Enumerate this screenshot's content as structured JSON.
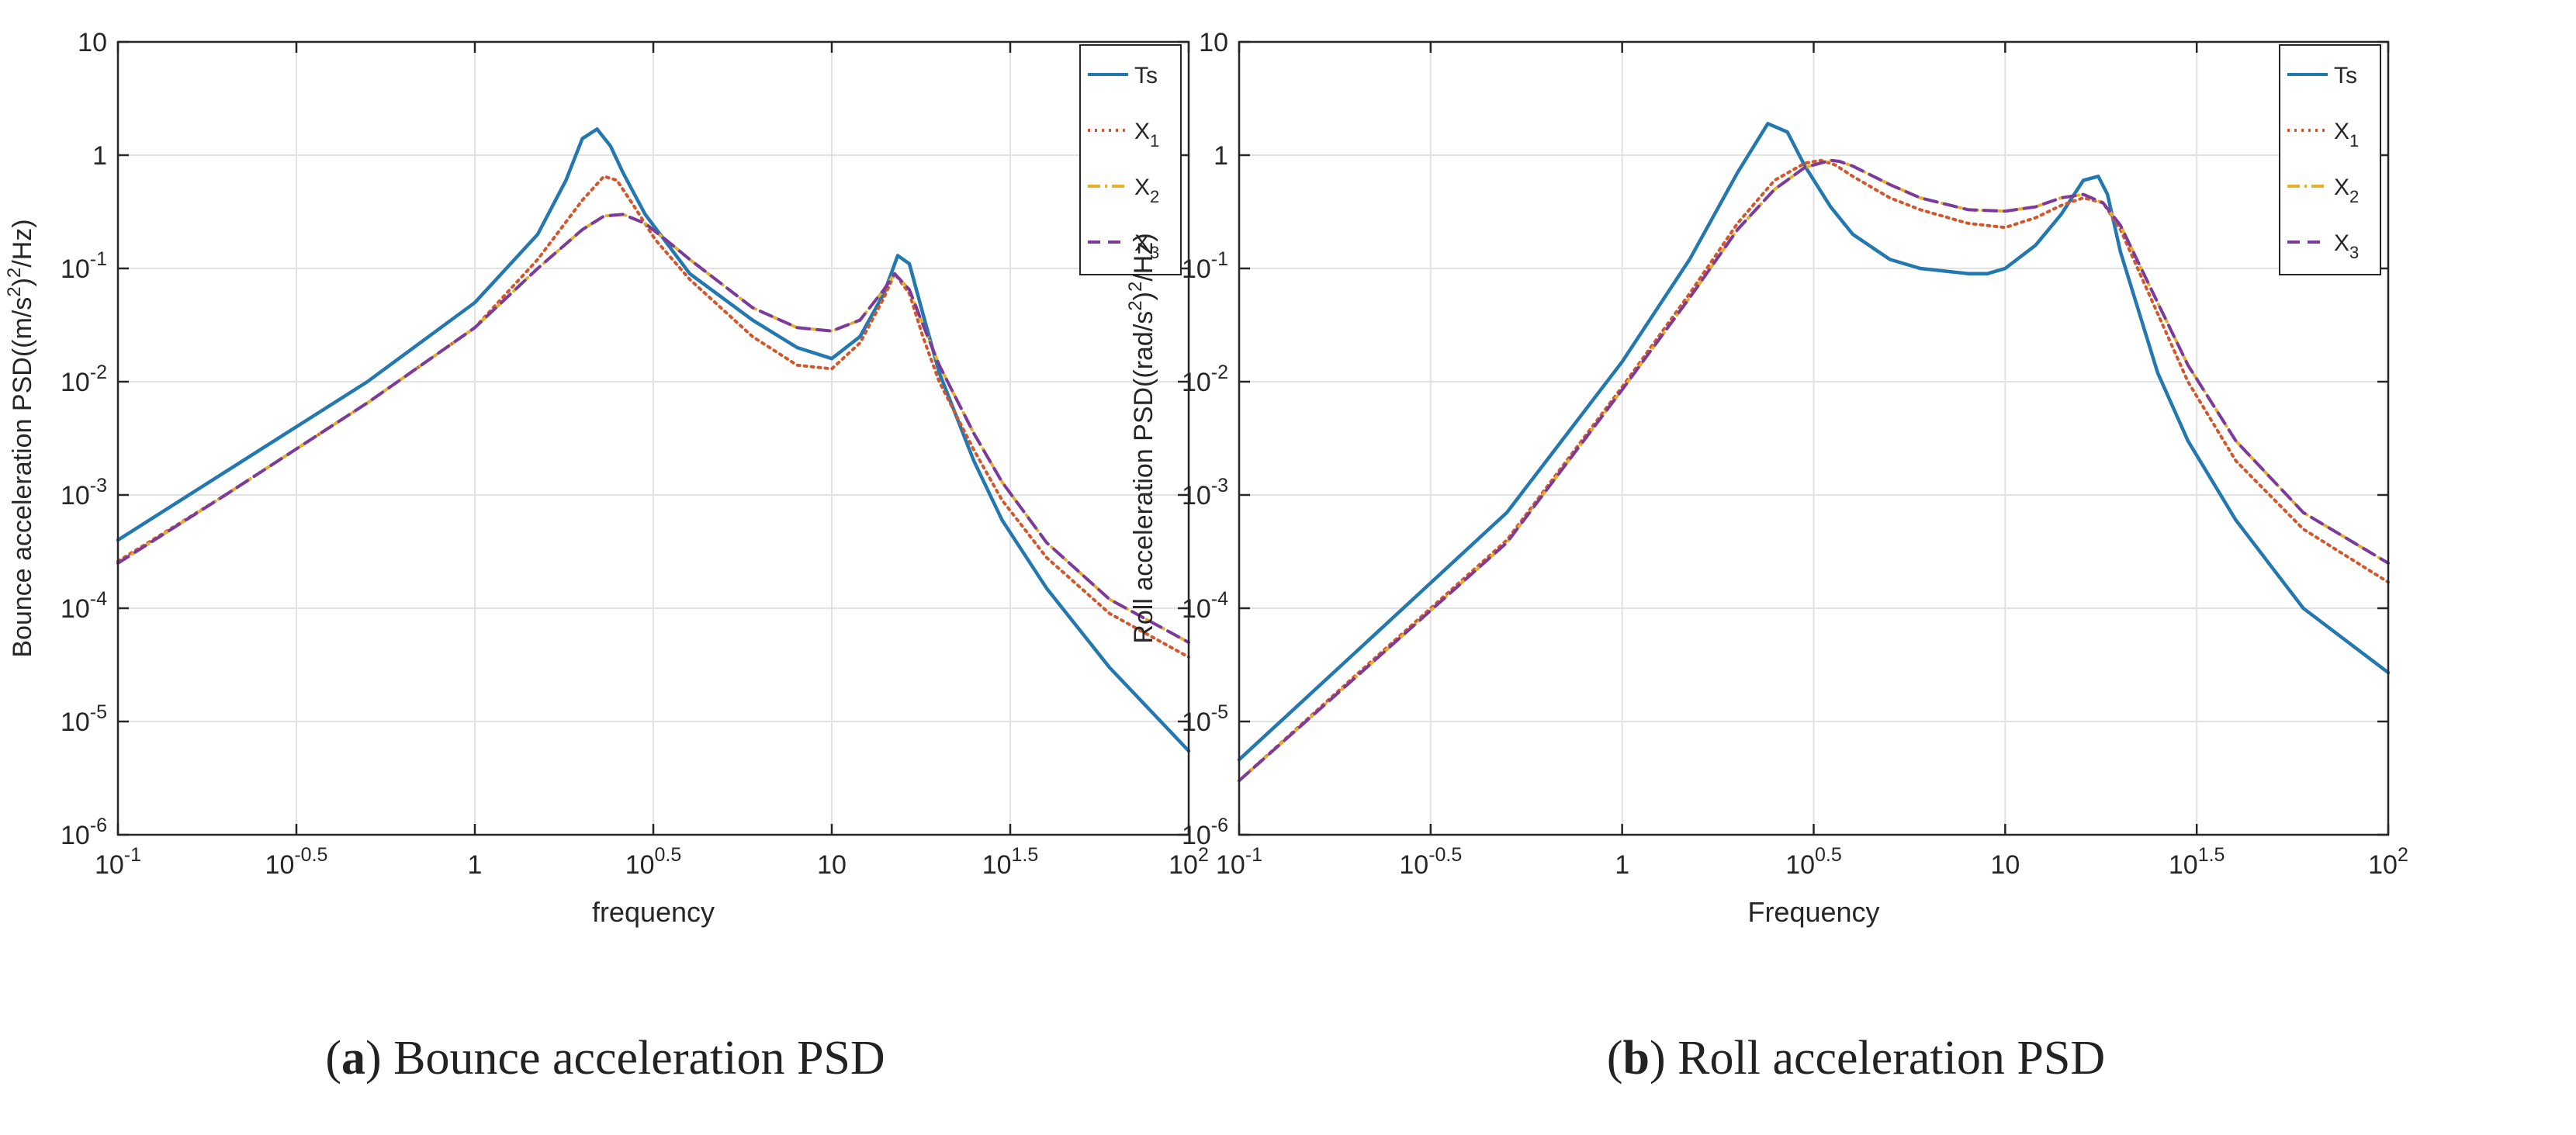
{
  "chart_data": [
    {
      "type": "line",
      "scale": "log-log",
      "xlabel": "frequency",
      "ylabel": "Bounce acceleration PSD((m/s²)²/Hz)",
      "ylabel_parts": {
        "pre": "Bounce acceleration PSD((m/s",
        "sup1": "2",
        "mid": ")",
        "sup2": "2",
        "post": "/Hz)"
      },
      "xlim": [
        0.1,
        100
      ],
      "ylim": [
        1e-06,
        10
      ],
      "grid": true,
      "legend_position": "top-right",
      "x_tick_values": [
        0.1,
        0.31623,
        1,
        3.1623,
        10,
        31.623,
        100
      ],
      "x_ticks": [
        {
          "base": "10",
          "exp": "-1"
        },
        {
          "base": "10",
          "exp": "-0.5"
        },
        {
          "base": "1",
          "exp": ""
        },
        {
          "base": "10",
          "exp": "0.5"
        },
        {
          "base": "10",
          "exp": ""
        },
        {
          "base": "10",
          "exp": "1.5"
        },
        {
          "base": "10",
          "exp": "2"
        }
      ],
      "y_tick_values": [
        10,
        1,
        0.1,
        0.01,
        0.001,
        0.0001,
        1e-05,
        1e-06
      ],
      "y_ticks": [
        {
          "base": "10",
          "exp": ""
        },
        {
          "base": "1",
          "exp": ""
        },
        {
          "base": "10",
          "exp": "-1"
        },
        {
          "base": "10",
          "exp": "-2"
        },
        {
          "base": "10",
          "exp": "-3"
        },
        {
          "base": "10",
          "exp": "-4"
        },
        {
          "base": "10",
          "exp": "-5"
        },
        {
          "base": "10",
          "exp": "-6"
        }
      ],
      "caption": {
        "letter": "a",
        "prefix": "(",
        "suffix": ") Bounce acceleration PSD"
      },
      "series": [
        {
          "name": "Ts",
          "label_main": "Ts",
          "label_sub": "",
          "color": "#2478b0",
          "dash": "solid",
          "x": [
            0.1,
            0.2,
            0.5,
            1.0,
            1.5,
            1.8,
            2.0,
            2.2,
            2.4,
            2.6,
            3.0,
            4.0,
            6.0,
            8.0,
            10.0,
            12.0,
            14.0,
            15.3,
            16.5,
            18.0,
            20.0,
            25.0,
            30.0,
            40.0,
            60.0,
            100.0
          ],
          "y": [
            0.0004,
            0.0016,
            0.01,
            0.05,
            0.2,
            0.6,
            1.4,
            1.7,
            1.2,
            0.7,
            0.3,
            0.09,
            0.035,
            0.02,
            0.016,
            0.025,
            0.06,
            0.13,
            0.11,
            0.04,
            0.012,
            0.002,
            0.0006,
            0.00015,
            3e-05,
            5.5e-06
          ]
        },
        {
          "name": "X1",
          "label_main": "X",
          "label_sub": "1",
          "color": "#d4562a",
          "dash": "dot",
          "x": [
            0.1,
            0.2,
            0.5,
            1.0,
            1.5,
            2.0,
            2.3,
            2.5,
            2.8,
            3.2,
            4.0,
            6.0,
            8.0,
            10.0,
            12.0,
            14.0,
            15.0,
            16.5,
            18.0,
            20.0,
            25.0,
            30.0,
            40.0,
            60.0,
            100.0
          ],
          "y": [
            0.00026,
            0.001,
            0.0065,
            0.03,
            0.12,
            0.4,
            0.65,
            0.6,
            0.35,
            0.18,
            0.08,
            0.025,
            0.014,
            0.013,
            0.022,
            0.055,
            0.09,
            0.06,
            0.025,
            0.01,
            0.0025,
            0.0009,
            0.00028,
            9e-05,
            3.7e-05
          ]
        },
        {
          "name": "X2",
          "label_main": "X",
          "label_sub": "2",
          "color": "#e3b22a",
          "dash": "dashdot",
          "x": [
            0.1,
            0.2,
            0.5,
            1.0,
            1.5,
            2.0,
            2.3,
            2.6,
            3.0,
            3.5,
            4.0,
            6.0,
            8.0,
            10.0,
            12.0,
            14.0,
            15.0,
            16.5,
            18.0,
            20.0,
            25.0,
            30.0,
            40.0,
            60.0,
            100.0
          ],
          "y": [
            0.00025,
            0.001,
            0.0065,
            0.03,
            0.1,
            0.22,
            0.29,
            0.3,
            0.25,
            0.17,
            0.12,
            0.045,
            0.03,
            0.028,
            0.035,
            0.065,
            0.09,
            0.065,
            0.032,
            0.014,
            0.0035,
            0.0013,
            0.00038,
            0.00012,
            5e-05
          ]
        },
        {
          "name": "X3",
          "label_main": "X",
          "label_sub": "3",
          "color": "#7b3b9e",
          "dash": "dash",
          "x": [
            0.1,
            0.2,
            0.5,
            1.0,
            1.5,
            2.0,
            2.3,
            2.6,
            3.0,
            3.5,
            4.0,
            6.0,
            8.0,
            10.0,
            12.0,
            14.0,
            15.0,
            16.5,
            18.0,
            20.0,
            25.0,
            30.0,
            40.0,
            60.0,
            100.0
          ],
          "y": [
            0.00025,
            0.001,
            0.0065,
            0.03,
            0.1,
            0.22,
            0.29,
            0.3,
            0.25,
            0.17,
            0.12,
            0.045,
            0.03,
            0.028,
            0.035,
            0.065,
            0.09,
            0.065,
            0.032,
            0.014,
            0.0035,
            0.0013,
            0.00038,
            0.00012,
            5e-05
          ]
        }
      ]
    },
    {
      "type": "line",
      "scale": "log-log",
      "xlabel": "Frequency",
      "ylabel": "Roll acceleration PSD((rad/s²)²/Hz)",
      "ylabel_parts": {
        "pre": "Roll acceleration PSD((rad/s",
        "sup1": "2",
        "mid": ")",
        "sup2": "2",
        "post": "/Hz)"
      },
      "xlim": [
        0.1,
        100
      ],
      "ylim": [
        1e-06,
        10
      ],
      "grid": true,
      "legend_position": "top-right",
      "x_tick_values": [
        0.1,
        0.31623,
        1,
        3.1623,
        10,
        31.623,
        100
      ],
      "x_ticks": [
        {
          "base": "10",
          "exp": "-1"
        },
        {
          "base": "10",
          "exp": "-0.5"
        },
        {
          "base": "1",
          "exp": ""
        },
        {
          "base": "10",
          "exp": "0.5"
        },
        {
          "base": "10",
          "exp": ""
        },
        {
          "base": "10",
          "exp": "1.5"
        },
        {
          "base": "10",
          "exp": "2"
        }
      ],
      "y_tick_values": [
        10,
        1,
        0.1,
        0.01,
        0.001,
        0.0001,
        1e-05,
        1e-06
      ],
      "y_ticks": [
        {
          "base": "10",
          "exp": ""
        },
        {
          "base": "1",
          "exp": ""
        },
        {
          "base": "10",
          "exp": "-1"
        },
        {
          "base": "10",
          "exp": "-2"
        },
        {
          "base": "10",
          "exp": "-3"
        },
        {
          "base": "10",
          "exp": "-4"
        },
        {
          "base": "10",
          "exp": "-5"
        },
        {
          "base": "10",
          "exp": "-6"
        }
      ],
      "caption": {
        "letter": "b",
        "prefix": "(",
        "suffix": ") Roll acceleration PSD"
      },
      "series": [
        {
          "name": "Ts",
          "label_main": "Ts",
          "label_sub": "",
          "color": "#2478b0",
          "dash": "solid",
          "x": [
            0.1,
            0.2,
            0.5,
            1.0,
            1.5,
            2.0,
            2.4,
            2.7,
            3.0,
            3.5,
            4.0,
            5.0,
            6.0,
            8.0,
            9.0,
            10.0,
            12.0,
            14.0,
            16.0,
            17.5,
            18.5,
            20.0,
            25.0,
            30.0,
            40.0,
            60.0,
            100.0
          ],
          "y": [
            4.6e-06,
            4e-05,
            0.0007,
            0.015,
            0.12,
            0.7,
            1.9,
            1.6,
            0.8,
            0.35,
            0.2,
            0.12,
            0.1,
            0.09,
            0.09,
            0.1,
            0.16,
            0.3,
            0.6,
            0.65,
            0.45,
            0.14,
            0.012,
            0.003,
            0.0006,
            0.0001,
            2.7e-05
          ]
        },
        {
          "name": "X1",
          "label_main": "X",
          "label_sub": "1",
          "color": "#d4562a",
          "dash": "dot",
          "x": [
            0.1,
            0.2,
            0.5,
            1.0,
            1.5,
            2.0,
            2.5,
            3.0,
            3.3,
            3.6,
            4.0,
            5.0,
            6.0,
            8.0,
            10.0,
            12.0,
            14.0,
            16.0,
            18.0,
            20.0,
            25.0,
            30.0,
            40.0,
            60.0,
            100.0
          ],
          "y": [
            3e-06,
            2.5e-05,
            0.0004,
            0.009,
            0.06,
            0.25,
            0.6,
            0.85,
            0.9,
            0.82,
            0.65,
            0.42,
            0.33,
            0.25,
            0.23,
            0.28,
            0.36,
            0.42,
            0.38,
            0.22,
            0.04,
            0.01,
            0.002,
            0.0005,
            0.00017
          ]
        },
        {
          "name": "X2",
          "label_main": "X",
          "label_sub": "2",
          "color": "#e3b22a",
          "dash": "dashdot",
          "x": [
            0.1,
            0.2,
            0.5,
            1.0,
            1.5,
            2.0,
            2.5,
            3.0,
            3.5,
            3.7,
            4.0,
            5.0,
            6.0,
            8.0,
            10.0,
            12.0,
            14.0,
            16.0,
            18.0,
            20.0,
            25.0,
            30.0,
            40.0,
            60.0,
            100.0
          ],
          "y": [
            3e-06,
            2.4e-05,
            0.00038,
            0.0085,
            0.055,
            0.22,
            0.5,
            0.78,
            0.9,
            0.88,
            0.8,
            0.55,
            0.42,
            0.33,
            0.32,
            0.35,
            0.42,
            0.45,
            0.38,
            0.24,
            0.05,
            0.014,
            0.003,
            0.0007,
            0.00025
          ]
        },
        {
          "name": "X3",
          "label_main": "X",
          "label_sub": "3",
          "color": "#7b3b9e",
          "dash": "dash",
          "x": [
            0.1,
            0.2,
            0.5,
            1.0,
            1.5,
            2.0,
            2.5,
            3.0,
            3.5,
            3.7,
            4.0,
            5.0,
            6.0,
            8.0,
            10.0,
            12.0,
            14.0,
            16.0,
            18.0,
            20.0,
            25.0,
            30.0,
            40.0,
            60.0,
            100.0
          ],
          "y": [
            3e-06,
            2.4e-05,
            0.00038,
            0.0085,
            0.055,
            0.22,
            0.5,
            0.78,
            0.9,
            0.88,
            0.8,
            0.55,
            0.42,
            0.33,
            0.32,
            0.35,
            0.42,
            0.45,
            0.38,
            0.24,
            0.05,
            0.014,
            0.003,
            0.0007,
            0.00025
          ]
        }
      ]
    }
  ]
}
